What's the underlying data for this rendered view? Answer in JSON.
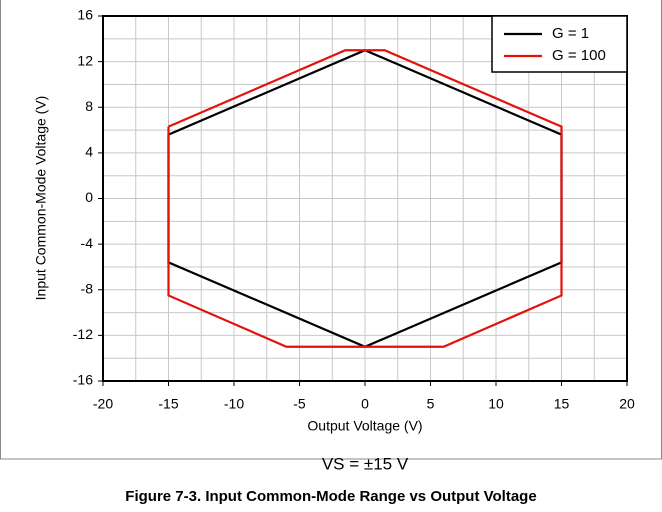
{
  "chart_data": {
    "type": "line",
    "xlabel": "Output Voltage (V)",
    "ylabel": "Input Common-Mode Voltage (V)",
    "annotation": "VS = ±15 V",
    "title": "Figure 7-3. Input Common-Mode Range vs Output Voltage",
    "xlim": [
      -20,
      20
    ],
    "xticks": [
      -20,
      -15,
      -10,
      -5,
      0,
      5,
      10,
      15,
      20
    ],
    "ylim": [
      -16,
      16
    ],
    "yticks": [
      -16,
      -12,
      -8,
      -4,
      0,
      4,
      8,
      12,
      16
    ],
    "grid": true,
    "legend": "upper right",
    "series": [
      {
        "name": "G = 1",
        "color": "#000000",
        "x": [
          -15,
          0,
          15,
          15,
          0,
          -15,
          -15
        ],
        "values": [
          5.6,
          13,
          5.6,
          -5.6,
          -13,
          -5.6,
          5.6
        ]
      },
      {
        "name": "G = 100",
        "color": "#e3120b",
        "x": [
          -15,
          -1.5,
          1.5,
          15,
          15,
          6,
          -6,
          -15,
          -15
        ],
        "values": [
          6.3,
          13,
          13,
          6.3,
          -8.5,
          -13,
          -13,
          -8.5,
          6.3
        ]
      }
    ]
  }
}
